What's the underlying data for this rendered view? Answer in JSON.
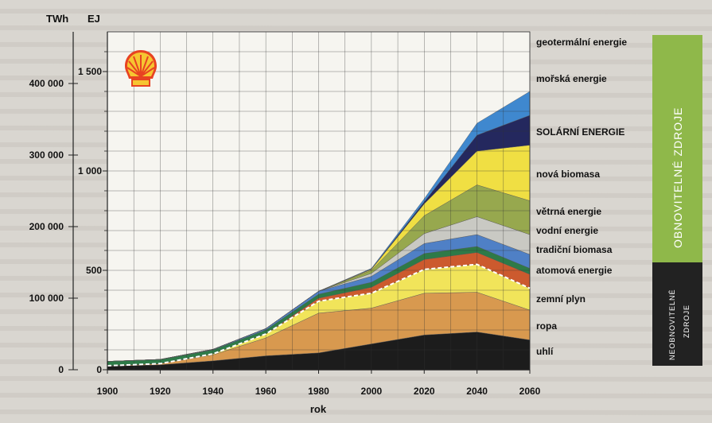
{
  "chart_data": {
    "type": "area",
    "stacked": true,
    "title": "",
    "xlabel": "rok",
    "y_left_unit": "TWh",
    "y_right_unit": "EJ",
    "x": [
      1900,
      1920,
      1940,
      1960,
      1980,
      2000,
      2020,
      2040,
      2060
    ],
    "xlim": [
      1900,
      2060
    ],
    "ylim_ej": [
      0,
      1700
    ],
    "x_ticks": [
      "1900",
      "1920",
      "1940",
      "1960",
      "1980",
      "2000",
      "2020",
      "2040",
      "2060"
    ],
    "y_ticks_twh": [
      {
        "value": 0,
        "label": "0"
      },
      {
        "value": 100000,
        "label": "100 000"
      },
      {
        "value": 200000,
        "label": "200 000"
      },
      {
        "value": 300000,
        "label": "300 000"
      },
      {
        "value": 400000,
        "label": "400 000"
      }
    ],
    "y_ticks_ej": [
      {
        "value": 0,
        "label": "0"
      },
      {
        "value": 500,
        "label": "500"
      },
      {
        "value": 1000,
        "label": "1 000"
      },
      {
        "value": 1500,
        "label": "1 500"
      }
    ],
    "grid": true,
    "legend_position": "right",
    "series": [
      {
        "name": "uhlí",
        "color": "#1c1c1c",
        "values": [
          18,
          25,
          45,
          70,
          85,
          130,
          175,
          190,
          150
        ]
      },
      {
        "name": "ropa",
        "color": "#d8994f",
        "values": [
          2,
          6,
          30,
          90,
          200,
          180,
          210,
          200,
          150
        ]
      },
      {
        "name": "zemní plyn",
        "color": "#f1e45a",
        "values": [
          0,
          0,
          5,
          20,
          60,
          75,
          120,
          140,
          110
        ]
      },
      {
        "name": "atomová energie",
        "color": "#cc5a2e",
        "values": [
          0,
          0,
          0,
          0,
          15,
          30,
          50,
          60,
          70
        ]
      },
      {
        "name": "tradiční biomasa",
        "color": "#2e7a48",
        "values": [
          22,
          20,
          20,
          20,
          20,
          25,
          30,
          30,
          30
        ]
      },
      {
        "name": "vodní energie",
        "color": "#4f80c6",
        "values": [
          0,
          1,
          3,
          7,
          15,
          30,
          50,
          60,
          70
        ]
      },
      {
        "name": "větrná energie",
        "color": "#c9c9c3",
        "values": [
          0,
          0,
          0,
          0,
          0,
          15,
          50,
          90,
          100
        ]
      },
      {
        "name": "nová biomasa",
        "color": "#97a84e",
        "values": [
          0,
          0,
          0,
          0,
          0,
          15,
          90,
          160,
          170
        ]
      },
      {
        "name": "SOLÁRNÍ ENERGIE",
        "color": "#f0df43",
        "values": [
          0,
          0,
          0,
          0,
          0,
          5,
          60,
          170,
          280
        ]
      },
      {
        "name": "mořská energie",
        "color": "#24285e",
        "values": [
          0,
          0,
          0,
          0,
          0,
          2,
          10,
          80,
          150
        ]
      },
      {
        "name": "geotermální energie",
        "color": "#3f88cf",
        "values": [
          0,
          0,
          0,
          0,
          0,
          3,
          15,
          60,
          120
        ]
      }
    ],
    "dashed_boundary": "between fossil and renewable sources",
    "groups": [
      {
        "label": "OBNOVITELNÉ ZDROJE",
        "color": "#8fb84a"
      },
      {
        "label_line1": "NEOBNOVITELNÉ",
        "label_line2": "ZDROJE",
        "color": "#222222"
      }
    ]
  },
  "logo": "shell-logo"
}
